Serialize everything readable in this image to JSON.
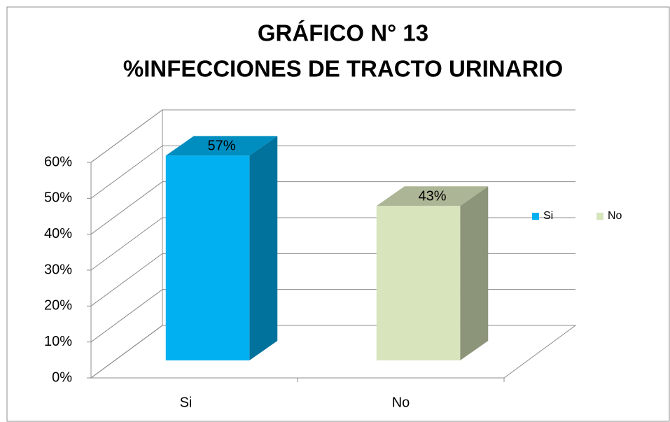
{
  "chart_data": {
    "type": "bar3d",
    "title": "GRÁFICO N° 13",
    "subtitle": "%INFECCIONES DE TRACTO URINARIO",
    "categories": [
      "Si",
      "No"
    ],
    "values": [
      57,
      43
    ],
    "value_labels": [
      "57%",
      "43%"
    ],
    "colors": [
      "#00b0f0",
      "#d7e4bc"
    ],
    "ylim": [
      0,
      60
    ],
    "yticks": [
      {
        "value": 0,
        "label": "0%"
      },
      {
        "value": 10,
        "label": "10%"
      },
      {
        "value": 20,
        "label": "20%"
      },
      {
        "value": 30,
        "label": "30%"
      },
      {
        "value": 40,
        "label": "40%"
      },
      {
        "value": 50,
        "label": "50%"
      },
      {
        "value": 60,
        "label": "60%"
      }
    ],
    "grid": true,
    "legend": "right"
  }
}
